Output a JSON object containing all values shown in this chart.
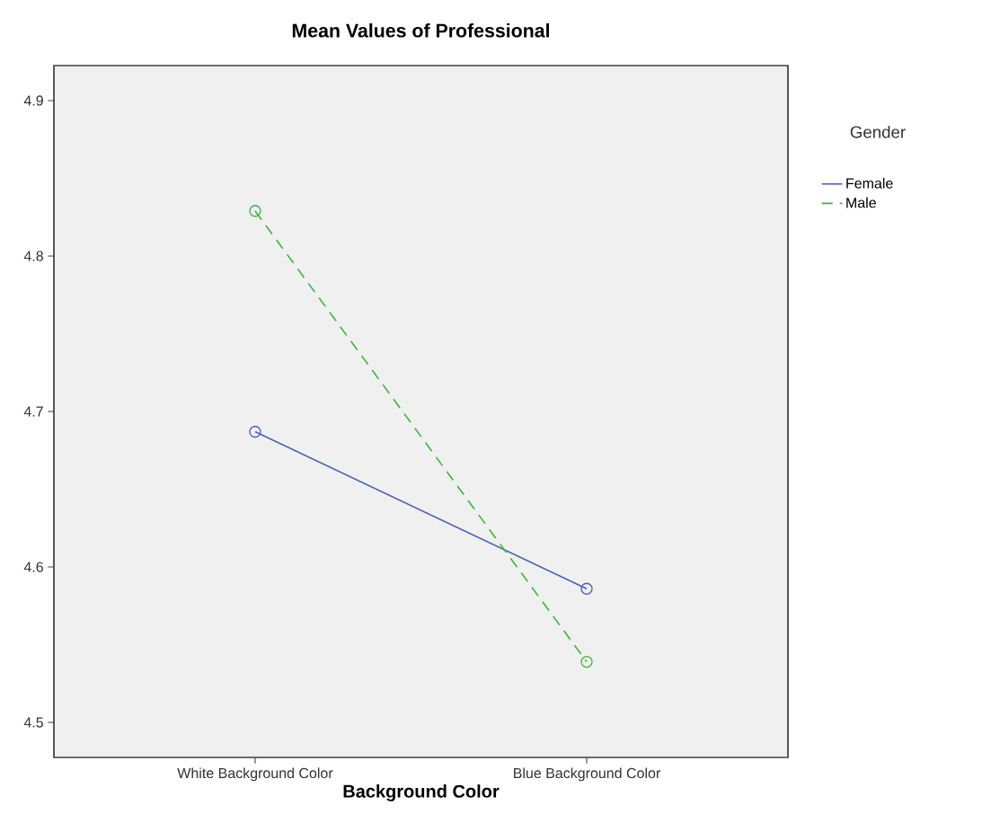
{
  "chart_data": {
    "type": "line",
    "title": "Mean Values of Professional",
    "xlabel": "Background Color",
    "legend_title": "Gender",
    "categories": [
      "White Background Color",
      "Blue Background Color"
    ],
    "series": [
      {
        "name": "Female",
        "color": "#4a62b8",
        "values": [
          4.687,
          4.586
        ],
        "line_style": "solid"
      },
      {
        "name": "Male",
        "color": "#3db53d",
        "values": [
          4.829,
          4.539
        ],
        "line_style": "dashed"
      }
    ],
    "ylim": [
      4.4775,
      4.9225
    ],
    "yticks": [
      4.5,
      4.6,
      4.7,
      4.8,
      4.9
    ],
    "marker": "circle",
    "grid": false,
    "legend": "right"
  }
}
